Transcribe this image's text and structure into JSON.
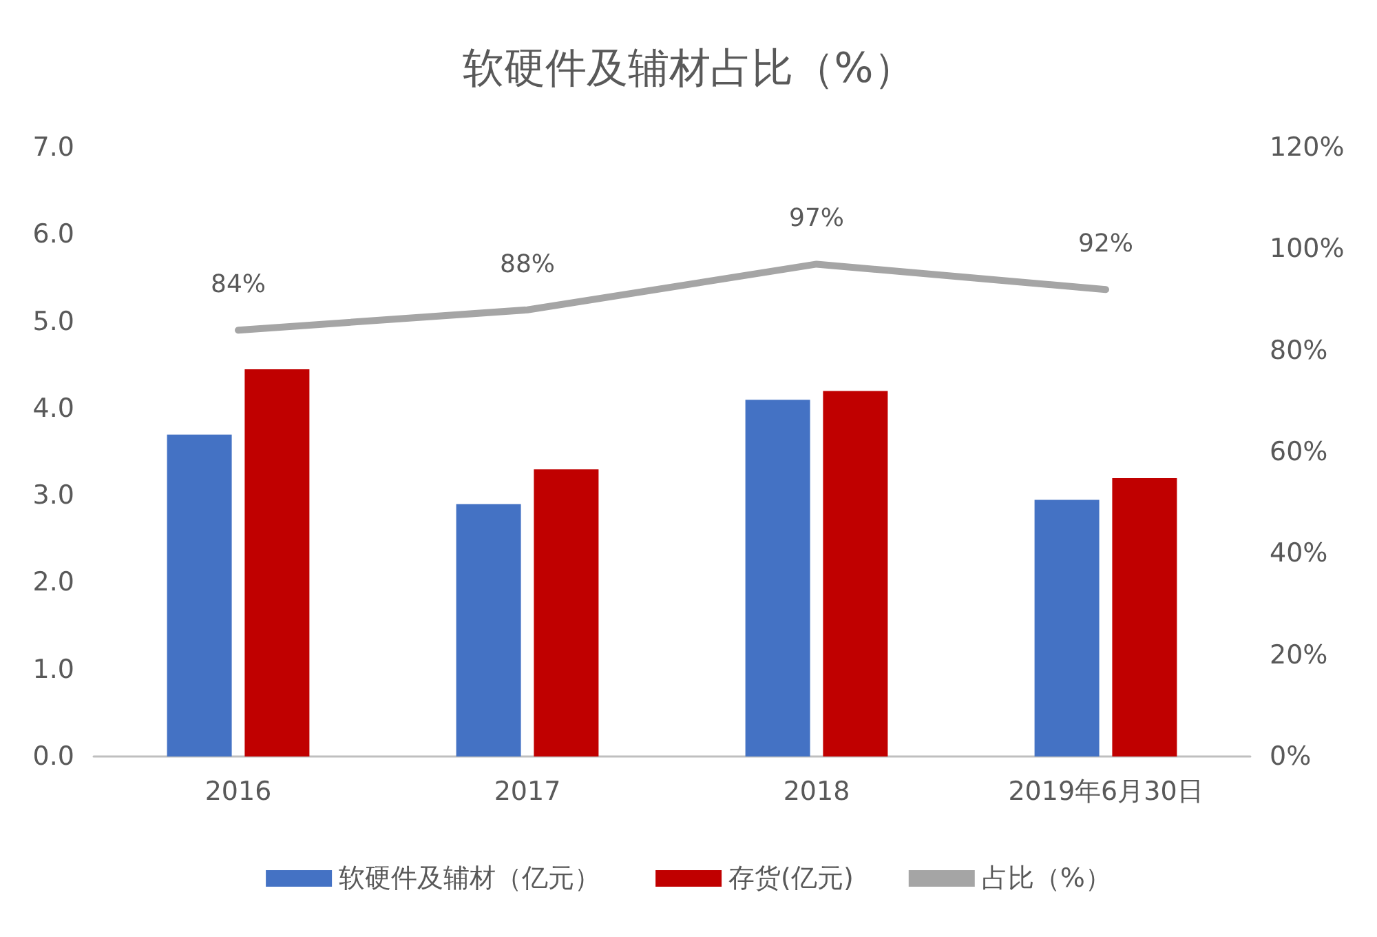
{
  "chart_data": {
    "type": "bar",
    "title": "软硬件及辅材占比（%）",
    "categories": [
      "2016",
      "2017",
      "2018",
      "2019年6月30日"
    ],
    "series": [
      {
        "name": "软硬件及辅材（亿元）",
        "color": "#4472c4",
        "values": [
          3.7,
          2.9,
          4.1,
          2.95
        ]
      },
      {
        "name": "存货(亿元)",
        "color": "#c00000",
        "values": [
          4.45,
          3.3,
          4.2,
          3.2
        ]
      },
      {
        "name": "占比（%）",
        "type": "line",
        "axis": "y2",
        "color": "#a5a5a5",
        "values": [
          84,
          88,
          97,
          92
        ],
        "value_labels": [
          "84%",
          "88%",
          "97%",
          "92%"
        ]
      }
    ],
    "ylim": [
      0,
      7
    ],
    "yticks": [
      {
        "value": 0,
        "label": "0.0"
      },
      {
        "value": 1,
        "label": "1.0"
      },
      {
        "value": 2,
        "label": "2.0"
      },
      {
        "value": 3,
        "label": "3.0"
      },
      {
        "value": 4,
        "label": "4.0"
      },
      {
        "value": 5,
        "label": "5.0"
      },
      {
        "value": 6,
        "label": "6.0"
      },
      {
        "value": 7,
        "label": "7.0"
      }
    ],
    "y2lim": [
      0,
      120
    ],
    "y2ticks": [
      {
        "value": 0,
        "label": "0%"
      },
      {
        "value": 20,
        "label": "20%"
      },
      {
        "value": 40,
        "label": "40%"
      },
      {
        "value": 60,
        "label": "60%"
      },
      {
        "value": 80,
        "label": "80%"
      },
      {
        "value": 100,
        "label": "100%"
      },
      {
        "value": 120,
        "label": "120%"
      }
    ],
    "grid": false,
    "legend": "bottom",
    "marker": "none",
    "line_style": "solid"
  }
}
